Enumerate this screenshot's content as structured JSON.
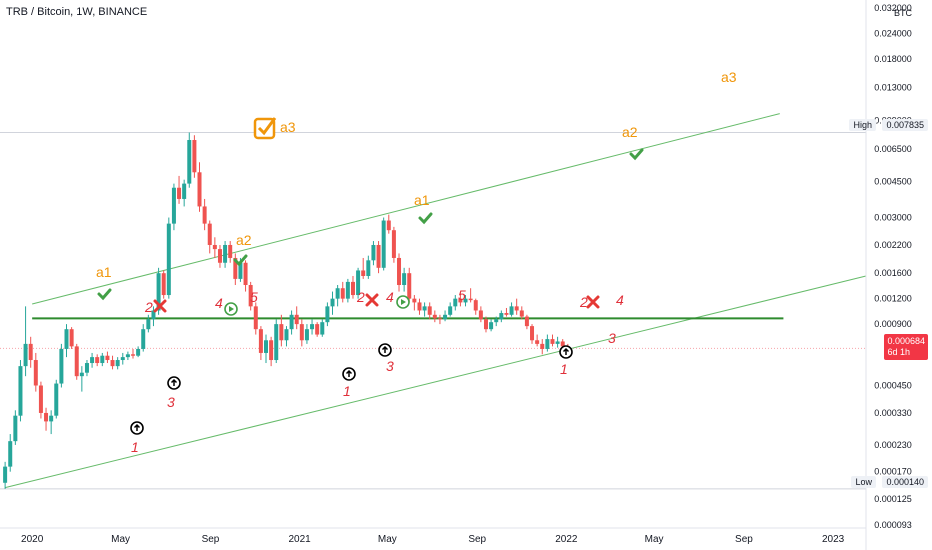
{
  "header": {
    "title": "TRB / Bitcoin, 1W, BINANCE",
    "currency": "BTC"
  },
  "axis": {
    "y_ticks": [
      "0.032000",
      "0.024000",
      "0.018000",
      "0.013000",
      "0.009000",
      "0.006500",
      "0.004500",
      "0.003000",
      "0.002200",
      "0.001600",
      "0.001200",
      "0.000900",
      "0.000450",
      "0.000330",
      "0.000230",
      "0.000170",
      "0.000125",
      "0.000093"
    ],
    "x_ticks": [
      "2020",
      "May",
      "Sep",
      "2021",
      "May",
      "Sep",
      "2022",
      "May",
      "Sep",
      "2023"
    ]
  },
  "labels": {
    "high": "High",
    "high_value": "0.007835",
    "low": "Low",
    "low_value": "0.000140",
    "last_price": "0.000684",
    "countdown": "6d 1h"
  },
  "annotations": {
    "wave_orange": [
      "a1",
      "a2",
      "a3",
      "a1",
      "a2",
      "a3"
    ],
    "wave_red": [
      "1",
      "2",
      "3",
      "4",
      "5",
      "1",
      "2",
      "3",
      "4",
      "5",
      "1",
      "2",
      "3",
      "4"
    ]
  },
  "chart_data": {
    "type": "candlestick",
    "title": "TRB / Bitcoin, 1W, BINANCE",
    "y_unit": "BTC",
    "y_scale": "log",
    "ylim": [
      9e-05,
      0.035
    ],
    "xlim": [
      "2019-11-18",
      "2023-02-15"
    ],
    "high": 0.007835,
    "low": 0.00014,
    "last": 0.000684,
    "colors": {
      "up": "#26a69a",
      "down": "#ef5350",
      "wave": "#f0960a",
      "count": "#e0303a",
      "line": "#2e8b2e"
    },
    "horizontal_support": 0.00096,
    "channel_upper": [
      [
        "2020-01-01",
        0.00113
      ],
      [
        "2022-10-20",
        0.0097
      ]
    ],
    "channel_lower": [
      [
        "2019-11-25",
        0.000142
      ],
      [
        "2023-02-15",
        0.00155
      ]
    ],
    "ohlc": [
      [
        "2019-11-25",
        0.00015,
        0.00019,
        0.00014,
        0.00018
      ],
      [
        "2019-12-02",
        0.00018,
        0.00026,
        0.00017,
        0.00024
      ],
      [
        "2019-12-09",
        0.00024,
        0.00034,
        0.00023,
        0.00032
      ],
      [
        "2019-12-16",
        0.00032,
        0.0006,
        0.0003,
        0.00056
      ],
      [
        "2019-12-23",
        0.00056,
        0.0011,
        0.0005,
        0.00072
      ],
      [
        "2019-12-30",
        0.00072,
        0.00078,
        0.00055,
        0.0006
      ],
      [
        "2020-01-06",
        0.0006,
        0.00065,
        0.00042,
        0.00045
      ],
      [
        "2020-01-13",
        0.00045,
        0.00047,
        0.00031,
        0.00033
      ],
      [
        "2020-01-20",
        0.00033,
        0.00035,
        0.00027,
        0.0003
      ],
      [
        "2020-01-27",
        0.0003,
        0.00034,
        0.00026,
        0.00032
      ],
      [
        "2020-02-03",
        0.00032,
        0.00048,
        0.00031,
        0.00046
      ],
      [
        "2020-02-10",
        0.00046,
        0.00072,
        0.00044,
        0.00068
      ],
      [
        "2020-02-17",
        0.00068,
        0.0009,
        0.00062,
        0.00085
      ],
      [
        "2020-02-24",
        0.00085,
        0.00087,
        0.00068,
        0.0007
      ],
      [
        "2020-03-02",
        0.0007,
        0.00072,
        0.00048,
        0.0005
      ],
      [
        "2020-03-09",
        0.0005,
        0.00056,
        0.00042,
        0.00052
      ],
      [
        "2020-03-16",
        0.00052,
        0.0006,
        0.0005,
        0.00058
      ],
      [
        "2020-03-23",
        0.00058,
        0.00065,
        0.00055,
        0.00062
      ],
      [
        "2020-03-30",
        0.00062,
        0.00064,
        0.00056,
        0.00058
      ],
      [
        "2020-04-06",
        0.00058,
        0.00065,
        0.00056,
        0.00063
      ],
      [
        "2020-04-13",
        0.00063,
        0.00066,
        0.00058,
        0.0006
      ],
      [
        "2020-04-20",
        0.0006,
        0.00063,
        0.00054,
        0.00056
      ],
      [
        "2020-04-27",
        0.00056,
        0.00062,
        0.00054,
        0.0006
      ],
      [
        "2020-05-04",
        0.0006,
        0.00065,
        0.00057,
        0.00062
      ],
      [
        "2020-05-11",
        0.00062,
        0.00066,
        0.0006,
        0.00064
      ],
      [
        "2020-05-18",
        0.00064,
        0.00068,
        0.00061,
        0.00063
      ],
      [
        "2020-05-25",
        0.00063,
        0.0007,
        0.00062,
        0.00068
      ],
      [
        "2020-06-01",
        0.00068,
        0.0009,
        0.00066,
        0.00085
      ],
      [
        "2020-06-08",
        0.00085,
        0.001,
        0.00082,
        0.00095
      ],
      [
        "2020-06-15",
        0.00095,
        0.0011,
        0.00088,
        0.00105
      ],
      [
        "2020-06-22",
        0.00105,
        0.0017,
        0.001,
        0.0016
      ],
      [
        "2020-06-29",
        0.0016,
        0.00165,
        0.0012,
        0.00125
      ],
      [
        "2020-07-06",
        0.00125,
        0.003,
        0.0012,
        0.0028
      ],
      [
        "2020-07-13",
        0.0028,
        0.0044,
        0.0026,
        0.0042
      ],
      [
        "2020-07-20",
        0.0042,
        0.0048,
        0.0035,
        0.0037
      ],
      [
        "2020-07-27",
        0.0037,
        0.0046,
        0.0034,
        0.0044
      ],
      [
        "2020-08-03",
        0.0044,
        0.007835,
        0.0042,
        0.0072
      ],
      [
        "2020-08-10",
        0.0072,
        0.0076,
        0.0047,
        0.005
      ],
      [
        "2020-08-17",
        0.005,
        0.0056,
        0.0032,
        0.0034
      ],
      [
        "2020-08-24",
        0.0034,
        0.0037,
        0.0026,
        0.0028
      ],
      [
        "2020-08-31",
        0.0028,
        0.0029,
        0.002,
        0.0022
      ],
      [
        "2020-09-07",
        0.0022,
        0.0024,
        0.0019,
        0.0021
      ],
      [
        "2020-09-14",
        0.0021,
        0.0022,
        0.0017,
        0.0018
      ],
      [
        "2020-09-21",
        0.0018,
        0.0023,
        0.0017,
        0.0022
      ],
      [
        "2020-09-28",
        0.0022,
        0.0023,
        0.0018,
        0.0019
      ],
      [
        "2020-10-05",
        0.0019,
        0.002,
        0.0014,
        0.0015
      ],
      [
        "2020-10-12",
        0.0015,
        0.0019,
        0.00145,
        0.0018
      ],
      [
        "2020-10-19",
        0.0018,
        0.00185,
        0.0013,
        0.0014
      ],
      [
        "2020-10-26",
        0.0014,
        0.00145,
        0.00105,
        0.0011
      ],
      [
        "2020-11-02",
        0.0011,
        0.00115,
        0.0008,
        0.00085
      ],
      [
        "2020-11-09",
        0.00085,
        0.00088,
        0.0006,
        0.00065
      ],
      [
        "2020-11-16",
        0.00065,
        0.0008,
        0.00058,
        0.00075
      ],
      [
        "2020-11-23",
        0.00075,
        0.00078,
        0.00056,
        0.0006
      ],
      [
        "2020-11-30",
        0.0006,
        0.00095,
        0.00058,
        0.0009
      ],
      [
        "2020-12-07",
        0.0009,
        0.001,
        0.0007,
        0.00075
      ],
      [
        "2020-12-14",
        0.00075,
        0.00088,
        0.0007,
        0.00085
      ],
      [
        "2020-12-21",
        0.00085,
        0.00105,
        0.0008,
        0.001
      ],
      [
        "2020-12-28",
        0.001,
        0.0011,
        0.00085,
        0.0009
      ],
      [
        "2021-01-04",
        0.0009,
        0.00095,
        0.0007,
        0.00075
      ],
      [
        "2021-01-11",
        0.00075,
        0.0009,
        0.00072,
        0.00085
      ],
      [
        "2021-01-18",
        0.00085,
        0.00095,
        0.0008,
        0.0009
      ],
      [
        "2021-01-25",
        0.0009,
        0.00092,
        0.00078,
        0.0008
      ],
      [
        "2021-02-01",
        0.0008,
        0.00095,
        0.00078,
        0.00092
      ],
      [
        "2021-02-08",
        0.00092,
        0.00115,
        0.00088,
        0.0011
      ],
      [
        "2021-02-15",
        0.0011,
        0.0013,
        0.001,
        0.0012
      ],
      [
        "2021-02-22",
        0.0012,
        0.0014,
        0.0011,
        0.00135
      ],
      [
        "2021-03-01",
        0.00135,
        0.00145,
        0.00115,
        0.0012
      ],
      [
        "2021-03-08",
        0.0012,
        0.0015,
        0.00115,
        0.00145
      ],
      [
        "2021-03-15",
        0.00145,
        0.00155,
        0.0012,
        0.00125
      ],
      [
        "2021-03-22",
        0.00125,
        0.0017,
        0.0012,
        0.00165
      ],
      [
        "2021-03-29",
        0.00165,
        0.0019,
        0.0015,
        0.00155
      ],
      [
        "2021-04-05",
        0.00155,
        0.00195,
        0.0015,
        0.00185
      ],
      [
        "2021-04-12",
        0.00185,
        0.0023,
        0.00175,
        0.0022
      ],
      [
        "2021-04-19",
        0.0022,
        0.0023,
        0.0016,
        0.0017
      ],
      [
        "2021-04-26",
        0.0017,
        0.003,
        0.00165,
        0.0029
      ],
      [
        "2021-05-03",
        0.0029,
        0.0031,
        0.0025,
        0.0026
      ],
      [
        "2021-05-10",
        0.0026,
        0.0027,
        0.0018,
        0.0019
      ],
      [
        "2021-05-17",
        0.0019,
        0.002,
        0.0013,
        0.0014
      ],
      [
        "2021-05-24",
        0.0014,
        0.0017,
        0.0013,
        0.0016
      ],
      [
        "2021-05-31",
        0.0016,
        0.0017,
        0.00115,
        0.0012
      ],
      [
        "2021-06-07",
        0.0012,
        0.00125,
        0.00105,
        0.00115
      ],
      [
        "2021-06-14",
        0.00115,
        0.0012,
        0.001,
        0.00105
      ],
      [
        "2021-06-21",
        0.00105,
        0.00115,
        0.00098,
        0.0011
      ],
      [
        "2021-06-28",
        0.0011,
        0.00115,
        0.00095,
        0.001
      ],
      [
        "2021-07-05",
        0.001,
        0.00105,
        0.00092,
        0.00096
      ],
      [
        "2021-07-12",
        0.00096,
        0.001,
        0.0009,
        0.00095
      ],
      [
        "2021-07-19",
        0.00095,
        0.00105,
        0.00093,
        0.001
      ],
      [
        "2021-07-26",
        0.001,
        0.00115,
        0.00098,
        0.0011
      ],
      [
        "2021-08-02",
        0.0011,
        0.00125,
        0.00105,
        0.0012
      ],
      [
        "2021-08-09",
        0.0012,
        0.00128,
        0.0011,
        0.00115
      ],
      [
        "2021-08-16",
        0.00115,
        0.00125,
        0.0011,
        0.0012
      ],
      [
        "2021-08-23",
        0.0012,
        0.00135,
        0.00115,
        0.00118
      ],
      [
        "2021-08-30",
        0.00118,
        0.0012,
        0.001,
        0.00105
      ],
      [
        "2021-09-06",
        0.00105,
        0.0011,
        0.00092,
        0.00095
      ],
      [
        "2021-09-13",
        0.00095,
        0.00098,
        0.00082,
        0.00085
      ],
      [
        "2021-09-20",
        0.00085,
        0.00095,
        0.00083,
        0.00092
      ],
      [
        "2021-09-27",
        0.00092,
        0.00098,
        0.00088,
        0.00095
      ],
      [
        "2021-10-04",
        0.00095,
        0.00105,
        0.00092,
        0.00102
      ],
      [
        "2021-10-11",
        0.00102,
        0.00108,
        0.00098,
        0.001
      ],
      [
        "2021-10-18",
        0.001,
        0.00115,
        0.00098,
        0.0011
      ],
      [
        "2021-10-25",
        0.0011,
        0.0012,
        0.001,
        0.00105
      ],
      [
        "2021-11-01",
        0.00105,
        0.0011,
        0.00095,
        0.00098
      ],
      [
        "2021-11-08",
        0.00098,
        0.001,
        0.00085,
        0.00088
      ],
      [
        "2021-11-15",
        0.00088,
        0.0009,
        0.00072,
        0.00075
      ],
      [
        "2021-11-22",
        0.00075,
        0.0008,
        0.0007,
        0.00072
      ],
      [
        "2021-11-29",
        0.00072,
        0.00076,
        0.00064,
        0.00068
      ],
      [
        "2021-12-06",
        0.00068,
        0.0008,
        0.00066,
        0.00076
      ],
      [
        "2021-12-13",
        0.00076,
        0.0008,
        0.0007,
        0.00072
      ],
      [
        "2021-12-20",
        0.00072,
        0.00078,
        0.00069,
        0.00074
      ],
      [
        "2021-12-27",
        0.00074,
        0.00076,
        0.00068,
        0.0007
      ],
      [
        "2022-01-03",
        0.0007,
        0.00072,
        0.00066,
        0.000684
      ]
    ]
  }
}
